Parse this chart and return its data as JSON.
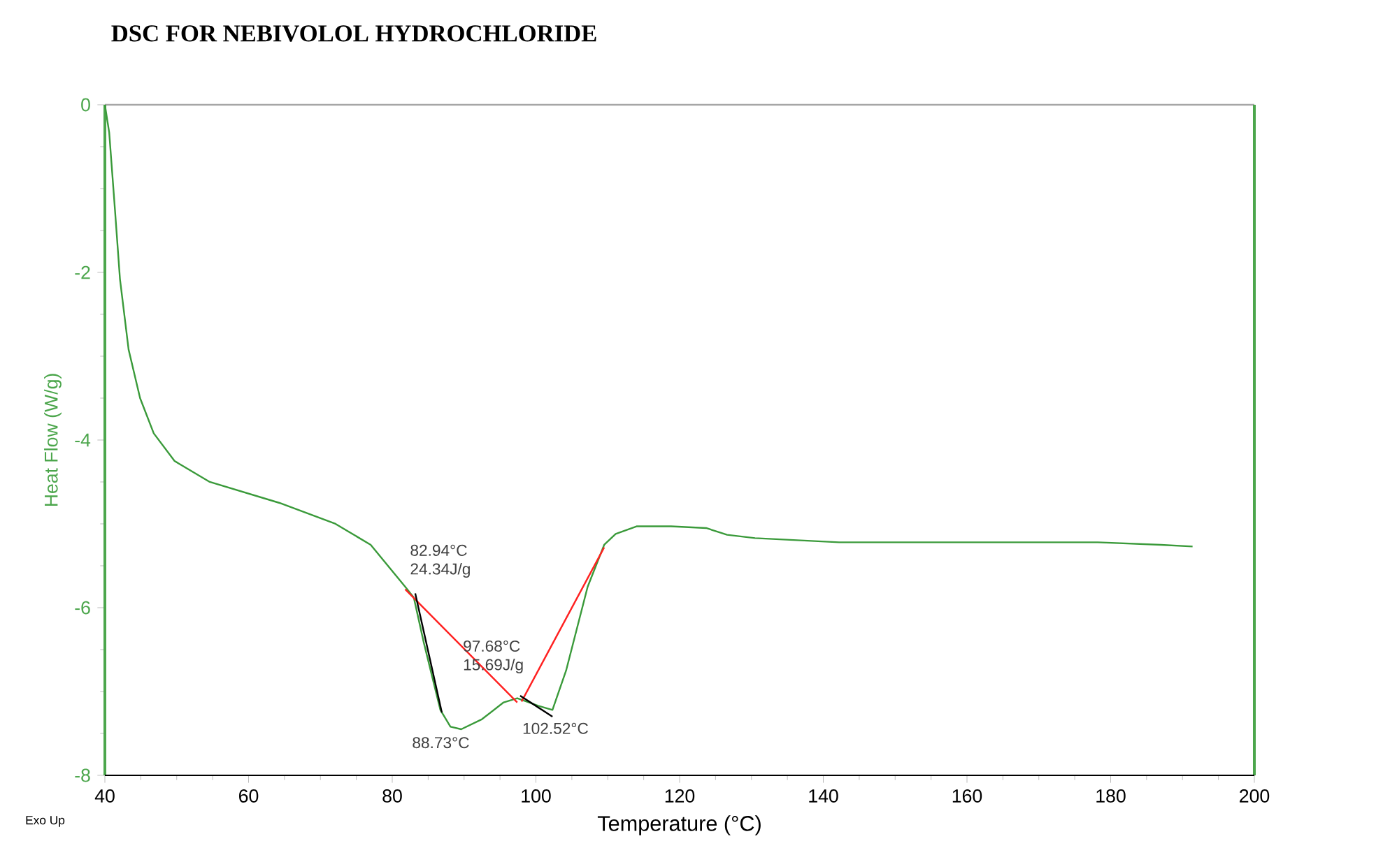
{
  "chart_data": {
    "type": "line",
    "title": "DSC FOR NEBIVOLOL HYDROCHLORIDE",
    "xlabel": "Temperature (°C)",
    "ylabel": "Heat Flow (W/g)",
    "xlim": [
      40,
      200
    ],
    "ylim": [
      -8,
      0
    ],
    "xticks": [
      40,
      60,
      80,
      100,
      120,
      140,
      160,
      180,
      200
    ],
    "yticks": [
      -8,
      -6,
      -4,
      -2,
      0
    ],
    "series": [
      {
        "color": "#3a9a3a",
        "x": [
          40,
          40.6,
          41.4,
          42.1,
          43.3,
          44.9,
          46.8,
          49.7,
          54.6,
          64.3,
          72.1,
          77.0,
          81.8,
          83.0,
          84.4,
          86.7,
          88.1,
          89.6,
          92.5,
          95.5,
          97.4,
          100.3,
          102.3,
          104.2,
          107.2,
          109.5,
          111.1,
          114.0,
          118.8,
          123.7,
          126.6,
          130.5,
          142.2,
          161.6,
          178.2,
          187.0,
          191.4
        ],
        "values": [
          0,
          -0.33,
          -1.25,
          -2.08,
          -2.92,
          -3.5,
          -3.92,
          -4.25,
          -4.5,
          -4.75,
          -5.0,
          -5.25,
          -5.75,
          -5.88,
          -6.42,
          -7.22,
          -7.42,
          -7.45,
          -7.33,
          -7.13,
          -7.08,
          -7.17,
          -7.22,
          -6.75,
          -5.75,
          -5.25,
          -5.12,
          -5.03,
          -5.03,
          -5.05,
          -5.13,
          -5.17,
          -5.22,
          -5.22,
          -5.22,
          -5.25,
          -5.27
        ]
      },
      {
        "color": "#ff2020",
        "x": [
          81.8,
          97.4
        ],
        "values": [
          -5.78,
          -7.13
        ]
      },
      {
        "color": "#ff2020",
        "x": [
          98.0,
          109.5
        ],
        "values": [
          -7.12,
          -5.28
        ]
      },
      {
        "color": "#000000",
        "x": [
          83.2,
          86.9
        ],
        "values": [
          -5.83,
          -7.25
        ]
      },
      {
        "color": "#000000",
        "x": [
          97.8,
          102.3
        ],
        "values": [
          -7.05,
          -7.3
        ]
      }
    ],
    "annotations": [
      {
        "text": "82.94°C 24.34J/g",
        "x": 82.94,
        "y": -5.78
      },
      {
        "text": "97.68°C 15.69J/g",
        "x": 97.68,
        "y": -7.1
      },
      {
        "text": "88.73°C",
        "x": 88.73,
        "y": -7.45
      },
      {
        "text": "102.52°C",
        "x": 102.52,
        "y": -7.28
      },
      "Exo Up"
    ]
  }
}
